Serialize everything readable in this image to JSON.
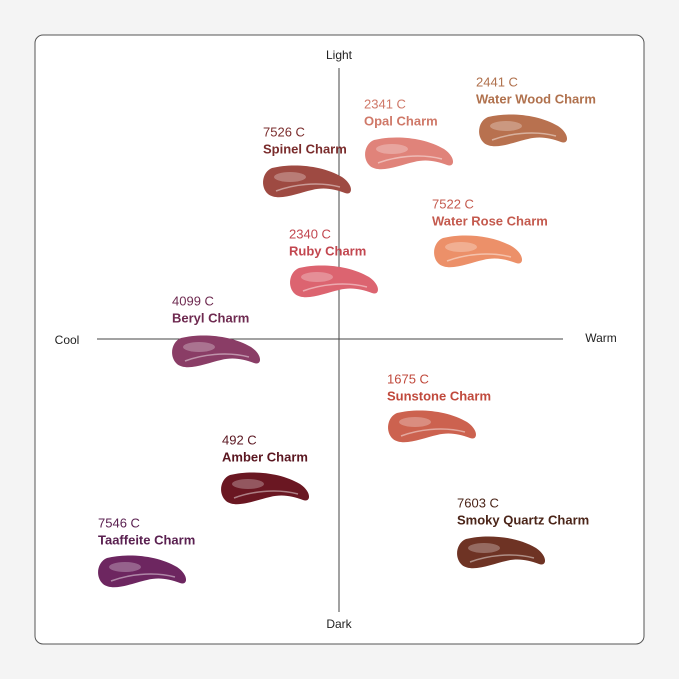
{
  "axes": {
    "top": "Light",
    "bottom": "Dark",
    "left": "Cool",
    "right": "Warm"
  },
  "items": [
    {
      "code": "2441 C",
      "name": "Water Wood Charm"
    },
    {
      "code": "2341 C",
      "name": "Opal Charm"
    },
    {
      "code": "7526 C",
      "name": "Spinel Charm"
    },
    {
      "code": "7522 C",
      "name": "Water Rose Charm"
    },
    {
      "code": "2340 C",
      "name": "Ruby Charm"
    },
    {
      "code": "4099 C",
      "name": "Beryl Charm"
    },
    {
      "code": "1675 C",
      "name": "Sunstone Charm"
    },
    {
      "code": "492 C",
      "name": "Amber Charm"
    },
    {
      "code": "7603 C",
      "name": "Smoky Quartz Charm"
    },
    {
      "code": "7546 C",
      "name": "Taaffeite Charm"
    }
  ]
}
